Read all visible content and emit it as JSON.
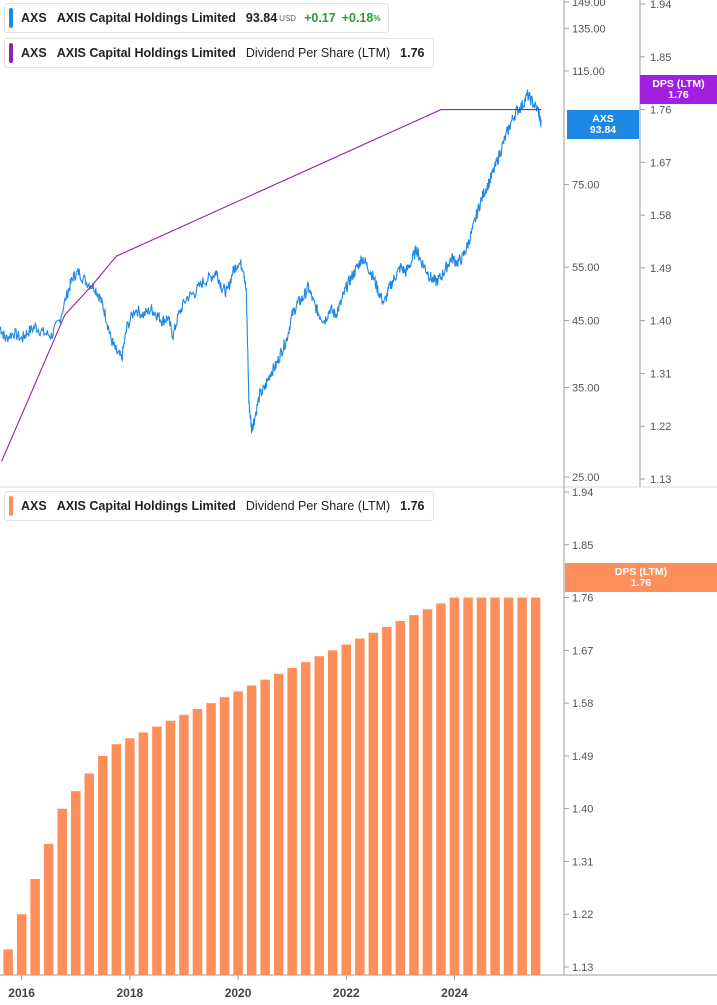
{
  "colors": {
    "price": "#1e88e5",
    "dps_line": "#8e24aa",
    "dps_bar": "#ff8f5a",
    "dps_tag": "#a21fe0",
    "axis_text": "#555555",
    "up": "#2e9b3b"
  },
  "legends": {
    "price": {
      "ticker": "AXS",
      "name": "AXIS Capital Holdings Limited",
      "price": "93.84",
      "currency": "USD",
      "change": "+0.17",
      "change_pct": "+0.18",
      "pct_sign": "%"
    },
    "dps_top": {
      "ticker": "AXS",
      "name": "AXIS Capital Holdings Limited",
      "metric": "Dividend Per Share (LTM)",
      "value": "1.76"
    },
    "dps_bottom": {
      "ticker": "AXS",
      "name": "AXIS Capital Holdings Limited",
      "metric": "Dividend Per Share (LTM)",
      "value": "1.76"
    }
  },
  "tags": {
    "price": {
      "line1": "AXS",
      "line2": "93.84"
    },
    "dps_top": {
      "line1": "DPS (LTM)",
      "line2": "1.76"
    },
    "dps_bottom": {
      "line1": "DPS (LTM)",
      "line2": "1.76"
    }
  },
  "chart_data": [
    {
      "type": "line",
      "panel": "top",
      "scale": "log",
      "x_range": [
        2015.6,
        2025.95
      ],
      "series": [
        {
          "name": "AXS",
          "axis": "price",
          "ylim": [
            25,
            149
          ],
          "yticks": [
            "149.00",
            "135.00",
            "115.00",
            "75.00",
            "55.00",
            "45.00",
            "35.00",
            "25.00"
          ],
          "points": [
            [
              2015.6,
              44
            ],
            [
              2015.7,
              42
            ],
            [
              2015.85,
              43
            ],
            [
              2016.0,
              42
            ],
            [
              2016.1,
              43
            ],
            [
              2016.25,
              44
            ],
            [
              2016.4,
              43
            ],
            [
              2016.55,
              42.5
            ],
            [
              2016.7,
              45
            ],
            [
              2016.85,
              50
            ],
            [
              2016.95,
              53
            ],
            [
              2017.05,
              54
            ],
            [
              2017.2,
              52
            ],
            [
              2017.35,
              51
            ],
            [
              2017.45,
              49
            ],
            [
              2017.55,
              46
            ],
            [
              2017.65,
              42
            ],
            [
              2017.75,
              40
            ],
            [
              2017.85,
              39
            ],
            [
              2017.95,
              44
            ],
            [
              2018.1,
              47
            ],
            [
              2018.25,
              46
            ],
            [
              2018.4,
              47
            ],
            [
              2018.5,
              46
            ],
            [
              2018.6,
              45
            ],
            [
              2018.7,
              45.5
            ],
            [
              2018.8,
              42.5
            ],
            [
              2018.9,
              46
            ],
            [
              2019.05,
              49
            ],
            [
              2019.2,
              50
            ],
            [
              2019.35,
              52
            ],
            [
              2019.5,
              53
            ],
            [
              2019.6,
              54
            ],
            [
              2019.7,
              51
            ],
            [
              2019.8,
              50
            ],
            [
              2019.9,
              54
            ],
            [
              2020.0,
              56
            ],
            [
              2020.1,
              55
            ],
            [
              2020.15,
              50
            ],
            [
              2020.2,
              33
            ],
            [
              2020.25,
              30
            ],
            [
              2020.3,
              31
            ],
            [
              2020.4,
              34
            ],
            [
              2020.5,
              35
            ],
            [
              2020.6,
              37
            ],
            [
              2020.7,
              38
            ],
            [
              2020.8,
              40
            ],
            [
              2020.9,
              42
            ],
            [
              2021.0,
              46
            ],
            [
              2021.1,
              48
            ],
            [
              2021.2,
              49
            ],
            [
              2021.3,
              51
            ],
            [
              2021.4,
              48
            ],
            [
              2021.5,
              46
            ],
            [
              2021.6,
              45
            ],
            [
              2021.7,
              47
            ],
            [
              2021.8,
              46
            ],
            [
              2021.9,
              48
            ],
            [
              2022.0,
              51
            ],
            [
              2022.1,
              53
            ],
            [
              2022.2,
              55
            ],
            [
              2022.3,
              57
            ],
            [
              2022.4,
              55
            ],
            [
              2022.5,
              53
            ],
            [
              2022.6,
              50
            ],
            [
              2022.7,
              48
            ],
            [
              2022.8,
              51
            ],
            [
              2022.9,
              53
            ],
            [
              2023.0,
              55
            ],
            [
              2023.1,
              54
            ],
            [
              2023.2,
              56
            ],
            [
              2023.3,
              59
            ],
            [
              2023.35,
              57
            ],
            [
              2023.45,
              55
            ],
            [
              2023.55,
              53
            ],
            [
              2023.65,
              52
            ],
            [
              2023.75,
              53
            ],
            [
              2023.85,
              55
            ],
            [
              2023.95,
              57
            ],
            [
              2024.05,
              56
            ],
            [
              2024.15,
              57
            ],
            [
              2024.25,
              60
            ],
            [
              2024.35,
              64
            ],
            [
              2024.45,
              69
            ],
            [
              2024.55,
              73
            ],
            [
              2024.65,
              76
            ],
            [
              2024.75,
              80
            ],
            [
              2024.85,
              85
            ],
            [
              2024.95,
              90
            ],
            [
              2025.05,
              95
            ],
            [
              2025.15,
              99
            ],
            [
              2025.25,
              101
            ],
            [
              2025.35,
              105
            ],
            [
              2025.45,
              102
            ],
            [
              2025.55,
              99
            ],
            [
              2025.6,
              93.84
            ]
          ]
        },
        {
          "name": "Dividend Per Share (LTM)",
          "axis": "dps",
          "ylim": [
            1.13,
            1.94
          ],
          "yticks": [
            "1.94",
            "1.85",
            "1.76",
            "1.67",
            "1.58",
            "1.49",
            "1.40",
            "1.31",
            "1.22",
            "1.13"
          ],
          "points": [
            [
              2015.63,
              1.16
            ],
            [
              2016.8,
              1.41
            ],
            [
              2017.3,
              1.46
            ],
            [
              2017.75,
              1.51
            ],
            [
              2023.75,
              1.76
            ],
            [
              2025.6,
              1.76
            ]
          ]
        }
      ]
    },
    {
      "type": "bar",
      "panel": "bottom",
      "name": "Dividend Per Share (LTM)",
      "ylim": [
        1.13,
        1.94
      ],
      "yticks": [
        "1.94",
        "1.85",
        "1.76",
        "1.67",
        "1.58",
        "1.49",
        "1.40",
        "1.31",
        "1.22",
        "1.13"
      ],
      "xticks": [
        "2016",
        "2018",
        "2020",
        "2022",
        "2024"
      ],
      "x": [
        2015.75,
        2016.0,
        2016.25,
        2016.5,
        2016.75,
        2017.0,
        2017.25,
        2017.5,
        2017.75,
        2018.0,
        2018.25,
        2018.5,
        2018.75,
        2019.0,
        2019.25,
        2019.5,
        2019.75,
        2020.0,
        2020.25,
        2020.5,
        2020.75,
        2021.0,
        2021.25,
        2021.5,
        2021.75,
        2022.0,
        2022.25,
        2022.5,
        2022.75,
        2023.0,
        2023.25,
        2023.5,
        2023.75,
        2024.0,
        2024.25,
        2024.5,
        2024.75,
        2025.0,
        2025.25,
        2025.5
      ],
      "values": [
        1.16,
        1.22,
        1.28,
        1.34,
        1.4,
        1.43,
        1.46,
        1.49,
        1.51,
        1.52,
        1.53,
        1.54,
        1.55,
        1.56,
        1.57,
        1.58,
        1.59,
        1.6,
        1.61,
        1.62,
        1.63,
        1.64,
        1.65,
        1.66,
        1.67,
        1.68,
        1.69,
        1.7,
        1.71,
        1.72,
        1.73,
        1.74,
        1.75,
        1.76,
        1.76,
        1.76,
        1.76,
        1.76,
        1.76,
        1.76
      ]
    }
  ]
}
